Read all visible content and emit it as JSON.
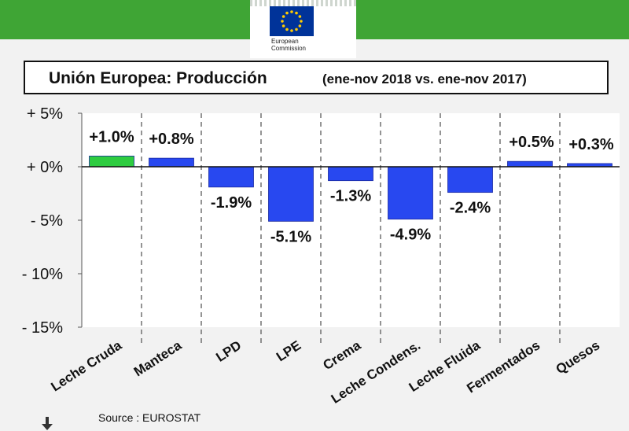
{
  "header": {
    "brand_line1": "European",
    "brand_line2": "Commission",
    "brand_color": "#3fa535"
  },
  "title": {
    "main": "Unión Europea: Producción",
    "sub": "(ene-nov 2018 vs. ene-nov 2017)"
  },
  "source": "Source : EUROSTAT",
  "chart_data": {
    "type": "bar",
    "categories": [
      "Leche Cruda",
      "Manteca",
      "LPD",
      "LPE",
      "Crema",
      "Leche Condens.",
      "Leche Fluida",
      "Fermentados",
      "Quesos"
    ],
    "values": [
      1.0,
      0.8,
      -1.9,
      -5.1,
      -1.3,
      -4.9,
      -2.4,
      0.5,
      0.3
    ],
    "value_labels": [
      "+1.0%",
      "+0.8%",
      "-1.9%",
      "-5.1%",
      "-1.3%",
      "-4.9%",
      "-2.4%",
      "+0.5%",
      "+0.3%"
    ],
    "bar_colors": [
      "#2ecc40",
      "#2848f0",
      "#2848f0",
      "#2848f0",
      "#2848f0",
      "#2848f0",
      "#2848f0",
      "#2848f0",
      "#2848f0"
    ],
    "yticks": [
      5,
      0,
      -5,
      -10,
      -15
    ],
    "ytick_labels": [
      "+ 5%",
      "+ 0%",
      "- 5%",
      "- 10%",
      "- 15%"
    ],
    "ylim": [
      -15,
      5
    ],
    "title": "Unión Europea: Producción (ene-nov 2018 vs. ene-nov 2017)",
    "xlabel": "",
    "ylabel": ""
  }
}
